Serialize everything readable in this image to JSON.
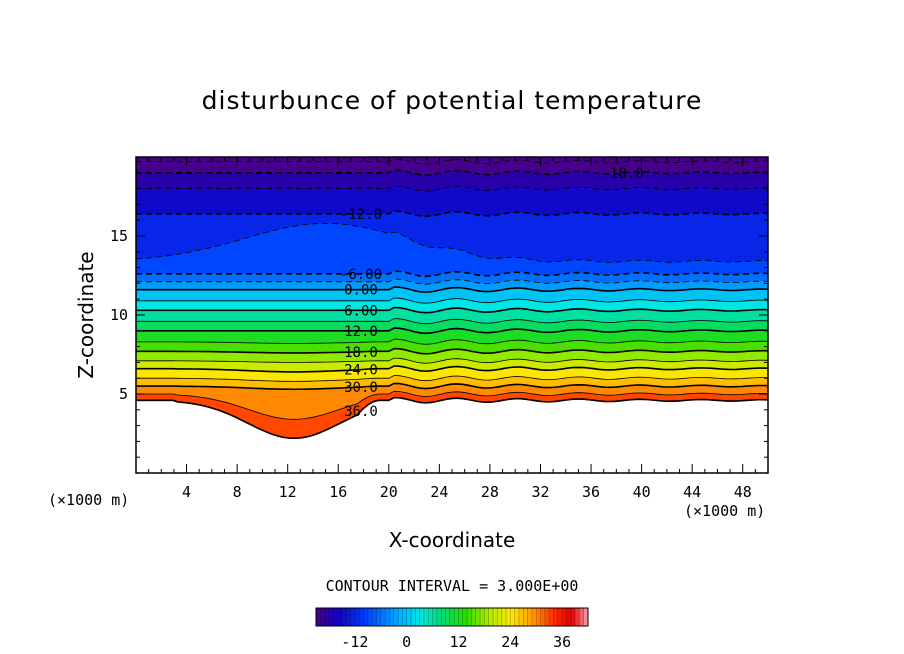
{
  "chart_data": {
    "type": "contour",
    "title": "disturbunce of potential temperature",
    "xlabel": "X-coordinate",
    "ylabel": "Z-coordinate",
    "x_unit": "(×1000 m)",
    "xlim": [
      0,
      50
    ],
    "ylim": [
      0,
      20
    ],
    "x_ticks": [
      "4",
      "8",
      "12",
      "16",
      "20",
      "24",
      "28",
      "32",
      "36",
      "40",
      "44",
      "48"
    ],
    "y_ticks": [
      "5",
      "10",
      "15"
    ],
    "contour_interval_text": "CONTOUR INTERVAL = 3.000E+00",
    "contour_labels": [
      "-18.0",
      "-12.0",
      "-6.00",
      "0.00",
      "6.00",
      "12.0",
      "18.0",
      "24.0",
      "30.0",
      "36.0"
    ],
    "colorbar_ticks": [
      "-12",
      "0",
      "12",
      "24",
      "36"
    ],
    "colorbar_range": [
      -21,
      42
    ],
    "levels": [
      {
        "value": 36,
        "base": 4.6,
        "min": 2.2
      },
      {
        "value": 33,
        "base": 5.0,
        "min": 3.4
      },
      {
        "value": 30,
        "base": 5.5,
        "min": 5.3
      },
      {
        "value": 27,
        "base": 6.0,
        "min": 5.8
      },
      {
        "value": 24,
        "base": 6.6,
        "min": 6.4
      },
      {
        "value": 21,
        "base": 7.1,
        "min": 7.0
      },
      {
        "value": 18,
        "base": 7.7,
        "min": 7.6
      },
      {
        "value": 15,
        "base": 8.3,
        "min": 8.2
      },
      {
        "value": 12,
        "base": 9.0,
        "min": 9.0
      },
      {
        "value": 9,
        "base": 9.6,
        "min": 9.6
      },
      {
        "value": 6,
        "base": 10.3,
        "min": 10.3
      },
      {
        "value": 3,
        "base": 10.9,
        "min": 10.9
      },
      {
        "value": 0,
        "base": 11.6,
        "min": 11.6
      },
      {
        "value": -3,
        "base": 12.1,
        "min": 12.1
      },
      {
        "value": -6,
        "base": 12.6,
        "min": 12.6
      },
      {
        "value": -9,
        "base": 13.4,
        "min": 13.4
      },
      {
        "value": -12,
        "base": 16.4,
        "min": 16.4
      },
      {
        "value": -15,
        "base": 18.0,
        "min": 18.0
      },
      {
        "value": -18,
        "base": 19.0,
        "min": 19.0
      },
      {
        "value": -21,
        "base": 19.7,
        "min": 19.7
      }
    ]
  }
}
